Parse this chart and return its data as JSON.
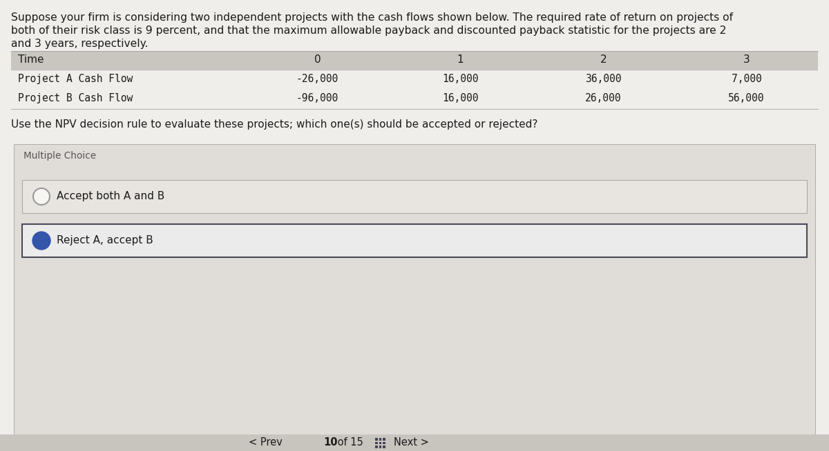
{
  "bg_color": "#f0eeeb",
  "top_bg": "#f0eeeb",
  "table_header_bg": "#c9c6c0",
  "table_row_bg": "#f0eeeb",
  "mc_section_bg": "#e0ddd8",
  "choice_bg": "#e8e5e0",
  "choice_selected_border": "#4a4a5a",
  "choice_unselected_border": "#aaaaaa",
  "selected_circle_color": "#3355aa",
  "font_color": "#1a1a1a",
  "gray_text": "#555555",
  "intro_text_line1": "Suppose your firm is considering two independent projects with the cash flows shown below. The required rate of return on projects of",
  "intro_text_line2": "both of their risk class is 9 percent, and that the maximum allowable payback and discounted payback statistic for the projects are 2",
  "intro_text_line3": "and 3 years, respectively.",
  "table_headers": [
    "Time",
    "0",
    "1",
    "2",
    "3"
  ],
  "table_rows": [
    [
      "Project A Cash Flow",
      "-26,000",
      "16,000",
      "36,000",
      "7,000"
    ],
    [
      "Project B Cash Flow",
      "-96,000",
      "16,000",
      "26,000",
      "56,000"
    ]
  ],
  "question_text": "Use the NPV decision rule to evaluate these projects; which one(s) should be accepted or rejected?",
  "mc_label": "Multiple Choice",
  "choice1_text": "Accept both A and B",
  "choice2_text": "Reject A, accept B",
  "nav_prev": "< Prev",
  "nav_page": "10",
  "nav_of": "of",
  "nav_total": "15",
  "nav_next": "Next >",
  "bottom_bar_color": "#c8c4be"
}
